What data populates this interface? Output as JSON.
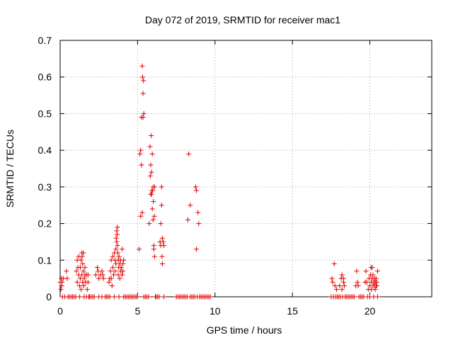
{
  "chart_data": {
    "type": "scatter",
    "title": "Day 072 of 2019, SRMTID for receiver mac1",
    "xlabel": "GPS time / hours",
    "ylabel": "SRMTID / TECUs",
    "xlim": [
      0,
      24
    ],
    "ylim": [
      0,
      0.7
    ],
    "xticks": [
      "0",
      "5",
      "10",
      "15",
      "20"
    ],
    "yticks": [
      "0",
      "0.1",
      "0.2",
      "0.3",
      "0.4",
      "0.5",
      "0.6",
      "0.7"
    ],
    "grid": true,
    "marker": "+",
    "color": "#e00000",
    "series": [
      {
        "points": [
          [
            0.0,
            0.04
          ],
          [
            0.05,
            0.02
          ],
          [
            0.08,
            0.05
          ],
          [
            0.1,
            0.03
          ],
          [
            0.12,
            0.04
          ],
          [
            0.15,
            0.0
          ],
          [
            0.2,
            0.05
          ],
          [
            0.3,
            0.0
          ],
          [
            0.4,
            0.07
          ],
          [
            0.45,
            0.05
          ],
          [
            0.5,
            0.0
          ],
          [
            0.6,
            0.0
          ],
          [
            0.7,
            0.0
          ],
          [
            0.8,
            0.0
          ],
          [
            0.9,
            0.0
          ],
          [
            1.0,
            0.0
          ],
          [
            1.05,
            0.07
          ],
          [
            1.1,
            0.1
          ],
          [
            1.1,
            0.04
          ],
          [
            1.15,
            0.08
          ],
          [
            1.2,
            0.11
          ],
          [
            1.2,
            0.06
          ],
          [
            1.25,
            0.03
          ],
          [
            1.25,
            0.0
          ],
          [
            1.3,
            0.08
          ],
          [
            1.3,
            0.05
          ],
          [
            1.35,
            0.1
          ],
          [
            1.35,
            0.02
          ],
          [
            1.4,
            0.12
          ],
          [
            1.4,
            0.06
          ],
          [
            1.42,
            0.11
          ],
          [
            1.45,
            0.04
          ],
          [
            1.45,
            0.09
          ],
          [
            1.5,
            0.12
          ],
          [
            1.5,
            0.07
          ],
          [
            1.52,
            0.03
          ],
          [
            1.55,
            0.05
          ],
          [
            1.55,
            0.0
          ],
          [
            1.6,
            0.06
          ],
          [
            1.6,
            0.08
          ],
          [
            1.65,
            0.04
          ],
          [
            1.7,
            0.06
          ],
          [
            1.7,
            0.0
          ],
          [
            1.75,
            0.02
          ],
          [
            1.8,
            0.04
          ],
          [
            1.8,
            0.06
          ],
          [
            1.85,
            0.0
          ],
          [
            1.9,
            0.0
          ],
          [
            2.0,
            0.0
          ],
          [
            2.1,
            0.0
          ],
          [
            2.2,
            0.0
          ],
          [
            2.3,
            0.06
          ],
          [
            2.4,
            0.08
          ],
          [
            2.45,
            0.07
          ],
          [
            2.5,
            0.05
          ],
          [
            2.5,
            0.0
          ],
          [
            2.6,
            0.06
          ],
          [
            2.7,
            0.07
          ],
          [
            2.7,
            0.0
          ],
          [
            2.75,
            0.06
          ],
          [
            2.8,
            0.05
          ],
          [
            2.9,
            0.0
          ],
          [
            3.0,
            0.0
          ],
          [
            3.1,
            0.0
          ],
          [
            3.15,
            0.04
          ],
          [
            3.2,
            0.05
          ],
          [
            3.2,
            0.0
          ],
          [
            3.25,
            0.07
          ],
          [
            3.3,
            0.1
          ],
          [
            3.3,
            0.05
          ],
          [
            3.35,
            0.03
          ],
          [
            3.4,
            0.11
          ],
          [
            3.4,
            0.08
          ],
          [
            3.45,
            0.06
          ],
          [
            3.5,
            0.12
          ],
          [
            3.5,
            0.0
          ],
          [
            3.55,
            0.1
          ],
          [
            3.55,
            0.07
          ],
          [
            3.6,
            0.13
          ],
          [
            3.6,
            0.09
          ],
          [
            3.62,
            0.16
          ],
          [
            3.65,
            0.18
          ],
          [
            3.65,
            0.15
          ],
          [
            3.68,
            0.17
          ],
          [
            3.7,
            0.14
          ],
          [
            3.7,
            0.19
          ],
          [
            3.72,
            0.12
          ],
          [
            3.75,
            0.1
          ],
          [
            3.75,
            0.06
          ],
          [
            3.78,
            0.08
          ],
          [
            3.8,
            0.11
          ],
          [
            3.8,
            0.0
          ],
          [
            3.85,
            0.09
          ],
          [
            3.85,
            0.05
          ],
          [
            3.9,
            0.07
          ],
          [
            3.9,
            0.1
          ],
          [
            3.95,
            0.08
          ],
          [
            4.0,
            0.06
          ],
          [
            4.0,
            0.13
          ],
          [
            4.05,
            0.09
          ],
          [
            4.05,
            0.07
          ],
          [
            4.1,
            0.1
          ],
          [
            4.1,
            0.0
          ],
          [
            4.2,
            0.0
          ],
          [
            4.3,
            0.0
          ],
          [
            4.4,
            0.0
          ],
          [
            4.5,
            0.0
          ],
          [
            4.6,
            0.0
          ],
          [
            4.7,
            0.0
          ],
          [
            4.8,
            0.0
          ],
          [
            4.9,
            0.0
          ],
          [
            5.0,
            0.0
          ],
          [
            5.1,
            0.13
          ],
          [
            5.15,
            0.39
          ],
          [
            5.2,
            0.4
          ],
          [
            5.2,
            0.22
          ],
          [
            5.25,
            0.36
          ],
          [
            5.25,
            0.49
          ],
          [
            5.3,
            0.63
          ],
          [
            5.3,
            0.23
          ],
          [
            5.32,
            0.6
          ],
          [
            5.35,
            0.555
          ],
          [
            5.35,
            0.49
          ],
          [
            5.38,
            0.59
          ],
          [
            5.4,
            0.5
          ],
          [
            5.4,
            0.0
          ],
          [
            5.5,
            0.0
          ],
          [
            5.6,
            0.0
          ],
          [
            5.7,
            0.0
          ],
          [
            5.75,
            0.2
          ],
          [
            5.8,
            0.41
          ],
          [
            5.82,
            0.33
          ],
          [
            5.85,
            0.36
          ],
          [
            5.85,
            0.28
          ],
          [
            5.88,
            0.44
          ],
          [
            5.9,
            0.28
          ],
          [
            5.9,
            0.34
          ],
          [
            5.92,
            0.29
          ],
          [
            5.95,
            0.39
          ],
          [
            5.95,
            0.24
          ],
          [
            5.98,
            0.29
          ],
          [
            6.0,
            0.3
          ],
          [
            6.0,
            0.21
          ],
          [
            6.02,
            0.26
          ],
          [
            6.05,
            0.14
          ],
          [
            6.05,
            0.13
          ],
          [
            6.08,
            0.22
          ],
          [
            6.1,
            0.11
          ],
          [
            6.1,
            0.3
          ],
          [
            6.15,
            0.0
          ],
          [
            6.2,
            0.0
          ],
          [
            6.3,
            0.0
          ],
          [
            6.4,
            0.0
          ],
          [
            6.45,
            0.15
          ],
          [
            6.5,
            0.14
          ],
          [
            6.5,
            0.2
          ],
          [
            6.55,
            0.3
          ],
          [
            6.55,
            0.25
          ],
          [
            6.58,
            0.11
          ],
          [
            6.6,
            0.09
          ],
          [
            6.6,
            0.16
          ],
          [
            6.65,
            0.15
          ],
          [
            6.7,
            0.14
          ],
          [
            6.7,
            0.0
          ],
          [
            7.5,
            0.0
          ],
          [
            7.6,
            0.0
          ],
          [
            7.7,
            0.0
          ],
          [
            7.8,
            0.0
          ],
          [
            7.9,
            0.0
          ],
          [
            8.0,
            0.0
          ],
          [
            8.1,
            0.0
          ],
          [
            8.2,
            0.0
          ],
          [
            8.25,
            0.21
          ],
          [
            8.3,
            0.39
          ],
          [
            8.4,
            0.25
          ],
          [
            8.4,
            0.0
          ],
          [
            8.5,
            0.0
          ],
          [
            8.6,
            0.0
          ],
          [
            8.7,
            0.0
          ],
          [
            8.75,
            0.3
          ],
          [
            8.8,
            0.29
          ],
          [
            8.8,
            0.13
          ],
          [
            8.85,
            0.0
          ],
          [
            8.9,
            0.23
          ],
          [
            8.95,
            0.2
          ],
          [
            9.0,
            0.0
          ],
          [
            9.1,
            0.0
          ],
          [
            9.2,
            0.0
          ],
          [
            9.3,
            0.0
          ],
          [
            9.4,
            0.0
          ],
          [
            9.5,
            0.0
          ],
          [
            9.6,
            0.0
          ],
          [
            9.7,
            0.0
          ],
          [
            17.5,
            0.0
          ],
          [
            17.55,
            0.05
          ],
          [
            17.6,
            0.04
          ],
          [
            17.65,
            0.0
          ],
          [
            17.7,
            0.09
          ],
          [
            17.75,
            0.03
          ],
          [
            17.8,
            0.0
          ],
          [
            17.85,
            0.02
          ],
          [
            17.9,
            0.0
          ],
          [
            18.0,
            0.0
          ],
          [
            18.05,
            0.03
          ],
          [
            18.1,
            0.0
          ],
          [
            18.15,
            0.05
          ],
          [
            18.2,
            0.06
          ],
          [
            18.2,
            0.02
          ],
          [
            18.25,
            0.0
          ],
          [
            18.3,
            0.05
          ],
          [
            18.3,
            0.04
          ],
          [
            18.35,
            0.03
          ],
          [
            18.4,
            0.0
          ],
          [
            18.5,
            0.0
          ],
          [
            18.6,
            0.0
          ],
          [
            18.7,
            0.0
          ],
          [
            18.8,
            0.0
          ],
          [
            18.9,
            0.0
          ],
          [
            19.0,
            0.0
          ],
          [
            19.1,
            0.03
          ],
          [
            19.15,
            0.07
          ],
          [
            19.2,
            0.04
          ],
          [
            19.25,
            0.03
          ],
          [
            19.3,
            0.0
          ],
          [
            19.4,
            0.0
          ],
          [
            19.5,
            0.0
          ],
          [
            19.6,
            0.0
          ],
          [
            19.7,
            0.04
          ],
          [
            19.75,
            0.07
          ],
          [
            19.8,
            0.04
          ],
          [
            19.85,
            0.0
          ],
          [
            19.9,
            0.02
          ],
          [
            19.95,
            0.05
          ],
          [
            20.0,
            0.03
          ],
          [
            20.0,
            0.0
          ],
          [
            20.05,
            0.06
          ],
          [
            20.08,
            0.08
          ],
          [
            20.1,
            0.04
          ],
          [
            20.1,
            0.02
          ],
          [
            20.15,
            0.08
          ],
          [
            20.15,
            0.05
          ],
          [
            20.2,
            0.03
          ],
          [
            20.2,
            0.06
          ],
          [
            20.25,
            0.04
          ],
          [
            20.25,
            0.0
          ],
          [
            20.3,
            0.05
          ],
          [
            20.3,
            0.03
          ],
          [
            20.35,
            0.04
          ],
          [
            20.35,
            0.02
          ],
          [
            20.4,
            0.03
          ],
          [
            20.4,
            0.05
          ],
          [
            20.45,
            0.04
          ],
          [
            20.45,
            0.03
          ],
          [
            20.5,
            0.07
          ],
          [
            20.5,
            0.0
          ]
        ]
      }
    ]
  }
}
